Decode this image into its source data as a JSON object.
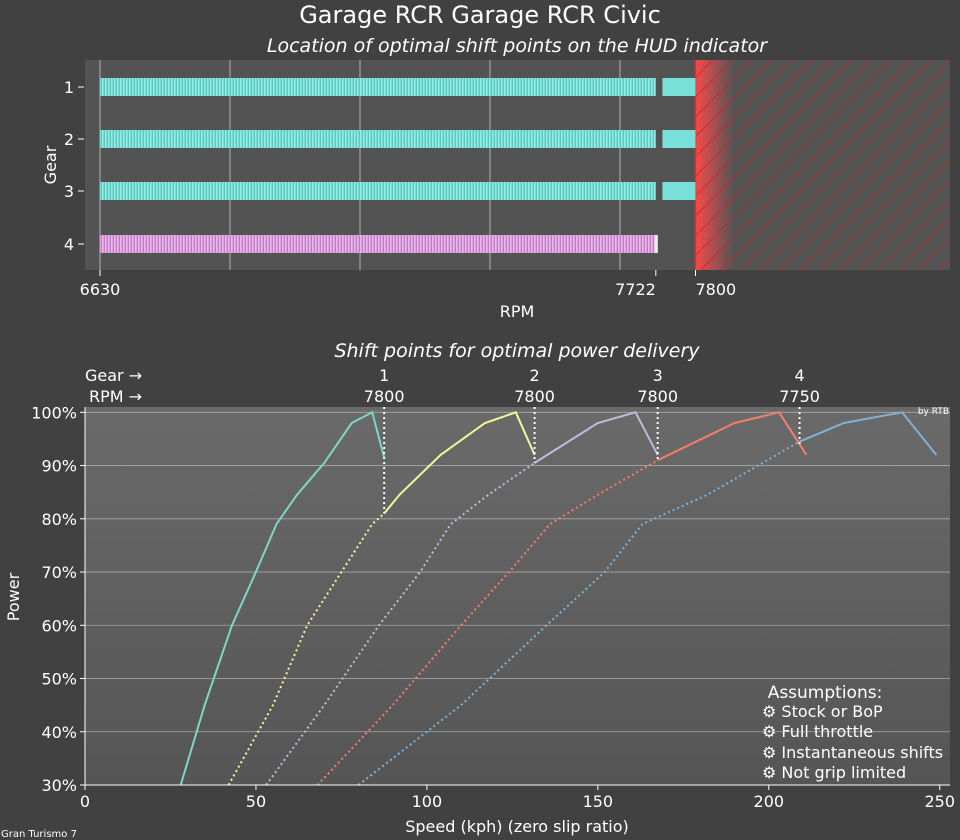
{
  "page": {
    "title": "Garage RCR Garage RCR Civic",
    "footer": "Gran Turismo 7",
    "credit": "by RTB"
  },
  "colors": {
    "gear1": "#7fd6c4",
    "gear2": "#f5f59a",
    "gear3": "#c2b9dd",
    "gear4": "#f47d6c",
    "gear5": "#82b1d3",
    "hud_bar": "#78e0d8",
    "hud_bar_last": "#d79bd8"
  },
  "chart_data": [
    {
      "type": "bar",
      "title": "Location of optimal shift points on the HUD indicator",
      "xlabel": "RPM",
      "ylabel": "Gear",
      "xlim": [
        6630,
        8300
      ],
      "x_ticks": [
        6630,
        7722,
        7800
      ],
      "gear_labels": [
        "1",
        "2",
        "3",
        "4"
      ],
      "bars": [
        {
          "gear": "1",
          "start": 6630,
          "end": 7722,
          "extra": [
            7735,
            7800
          ]
        },
        {
          "gear": "2",
          "start": 6630,
          "end": 7722,
          "extra": [
            7735,
            7800
          ]
        },
        {
          "gear": "3",
          "start": 6630,
          "end": 7722,
          "extra": [
            7735,
            7800
          ]
        },
        {
          "gear": "4",
          "start": 6630,
          "end": 7722,
          "extra": null
        }
      ],
      "redline": 7800,
      "grid": true
    },
    {
      "type": "line",
      "title": "Shift points for optimal power delivery",
      "xlabel": "Speed (kph) (zero slip ratio)",
      "ylabel": "Power",
      "xlim": [
        0,
        253
      ],
      "ylim": [
        30,
        101
      ],
      "x_ticks": [
        0,
        50,
        100,
        150,
        200,
        250
      ],
      "y_ticks": [
        30,
        40,
        50,
        60,
        70,
        80,
        90,
        100
      ],
      "header_gear_label": "Gear →",
      "header_rpm_label": "RPM →",
      "shift_points": [
        {
          "gear": "1",
          "rpm": "7800",
          "speed": 87.5,
          "from_power": 91.5,
          "to_power": 81
        },
        {
          "gear": "2",
          "rpm": "7800",
          "speed": 131.5,
          "from_power": 92,
          "to_power": 90.5
        },
        {
          "gear": "3",
          "rpm": "7800",
          "speed": 167.5,
          "from_power": 92,
          "to_power": 91
        },
        {
          "gear": "4",
          "rpm": "7750",
          "speed": 209,
          "from_power": 93.5,
          "to_power": 94.5
        }
      ],
      "series": [
        {
          "gear": 1,
          "solid": [
            [
              28,
              30
            ],
            [
              35,
              45
            ],
            [
              43,
              60
            ],
            [
              50,
              70
            ],
            [
              56,
              79
            ],
            [
              62,
              84.5
            ],
            [
              70,
              90.5
            ],
            [
              78,
              98
            ],
            [
              84,
              100
            ],
            [
              87.5,
              91.5
            ]
          ],
          "dotted": []
        },
        {
          "gear": 2,
          "solid": [
            [
              87.5,
              81
            ],
            [
              92,
              84.5
            ],
            [
              104,
              92
            ],
            [
              117,
              98
            ],
            [
              126,
              100
            ],
            [
              131.5,
              92
            ]
          ],
          "dotted": [
            [
              42,
              30
            ],
            [
              55,
              45
            ],
            [
              65,
              60
            ],
            [
              75,
              70
            ],
            [
              84,
              79
            ],
            [
              87.5,
              81
            ]
          ]
        },
        {
          "gear": 3,
          "solid": [
            [
              131.5,
              90.5
            ],
            [
              150,
              98
            ],
            [
              161,
              100
            ],
            [
              167.5,
              92
            ]
          ],
          "dotted": [
            [
              53,
              30
            ],
            [
              70,
              45
            ],
            [
              86,
              60
            ],
            [
              98,
              70
            ],
            [
              107,
              79
            ],
            [
              118,
              84.5
            ],
            [
              131.5,
              90.5
            ]
          ]
        },
        {
          "gear": 4,
          "solid": [
            [
              167.5,
              91
            ],
            [
              190,
              98
            ],
            [
              203,
              100
            ],
            [
              210,
              93
            ],
            [
              211,
              92
            ]
          ],
          "dotted": [
            [
              68,
              30
            ],
            [
              90,
              45
            ],
            [
              110,
              60
            ],
            [
              124,
              70
            ],
            [
              136,
              79
            ],
            [
              150,
              84.5
            ],
            [
              167.5,
              91
            ]
          ]
        },
        {
          "gear": 5,
          "solid": [
            [
              209,
              94.5
            ],
            [
              222,
              98
            ],
            [
              239,
              100
            ],
            [
              249,
              92
            ]
          ],
          "dotted": [
            [
              80,
              30
            ],
            [
              110,
              45
            ],
            [
              135,
              60
            ],
            [
              152,
              70
            ],
            [
              163,
              79
            ],
            [
              182,
              84.5
            ],
            [
              209,
              94.5
            ]
          ]
        }
      ],
      "assumptions_title": "Assumptions:",
      "assumptions": [
        "⚙ Stock or BoP",
        "⚙ Full throttle",
        "⚙ Instantaneous shifts",
        "⚙ Not grip limited"
      ]
    }
  ]
}
